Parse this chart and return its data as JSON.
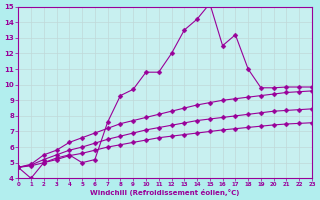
{
  "main_x": [
    0,
    1,
    2,
    3,
    4,
    5,
    6,
    7,
    8,
    9,
    10,
    11,
    12,
    13,
    14,
    15,
    16,
    17,
    18,
    19,
    20,
    21,
    22,
    23
  ],
  "main_y": [
    4.7,
    4.0,
    5.0,
    5.3,
    5.5,
    5.0,
    5.2,
    7.6,
    9.3,
    9.7,
    10.8,
    10.8,
    12.0,
    13.5,
    14.2,
    15.2,
    12.5,
    13.2,
    11.0,
    9.8,
    9.8,
    9.85,
    9.85,
    9.85
  ],
  "curve1_x": [
    0,
    1,
    2,
    3,
    4,
    5,
    6,
    7,
    8,
    9,
    10,
    11,
    12,
    13,
    14,
    15,
    16,
    17,
    18,
    19,
    20,
    21,
    22,
    23
  ],
  "curve1_y": [
    4.7,
    4.9,
    5.5,
    5.8,
    6.3,
    6.6,
    6.9,
    7.2,
    7.5,
    7.7,
    7.9,
    8.1,
    8.3,
    8.5,
    8.7,
    8.85,
    9.0,
    9.1,
    9.2,
    9.3,
    9.4,
    9.5,
    9.55,
    9.6
  ],
  "curve2_x": [
    0,
    1,
    2,
    3,
    4,
    5,
    6,
    7,
    8,
    9,
    10,
    11,
    12,
    13,
    14,
    15,
    16,
    17,
    18,
    19,
    20,
    21,
    22,
    23
  ],
  "curve2_y": [
    4.7,
    4.85,
    5.2,
    5.5,
    5.8,
    6.0,
    6.25,
    6.5,
    6.7,
    6.9,
    7.1,
    7.25,
    7.4,
    7.55,
    7.7,
    7.8,
    7.9,
    8.0,
    8.1,
    8.2,
    8.3,
    8.35,
    8.4,
    8.45
  ],
  "curve3_x": [
    0,
    1,
    2,
    3,
    4,
    5,
    6,
    7,
    8,
    9,
    10,
    11,
    12,
    13,
    14,
    15,
    16,
    17,
    18,
    19,
    20,
    21,
    22,
    23
  ],
  "curve3_y": [
    4.7,
    4.8,
    5.0,
    5.2,
    5.45,
    5.6,
    5.8,
    6.0,
    6.15,
    6.3,
    6.45,
    6.6,
    6.7,
    6.8,
    6.9,
    7.0,
    7.1,
    7.18,
    7.26,
    7.34,
    7.42,
    7.48,
    7.52,
    7.56
  ],
  "xlim": [
    0,
    23
  ],
  "ylim": [
    4,
    15
  ],
  "yticks": [
    4,
    5,
    6,
    7,
    8,
    9,
    10,
    11,
    12,
    13,
    14,
    15
  ],
  "xticks": [
    0,
    1,
    2,
    3,
    4,
    5,
    6,
    7,
    8,
    9,
    10,
    11,
    12,
    13,
    14,
    15,
    16,
    17,
    18,
    19,
    20,
    21,
    22,
    23
  ],
  "xlabel": "Windchill (Refroidissement éolien,°C)",
  "line_color": "#990099",
  "bg_color": "#b2eeee",
  "grid_color": "#c0d8d8",
  "plot_bg": "#c8f0f0",
  "markersize": 2.5
}
